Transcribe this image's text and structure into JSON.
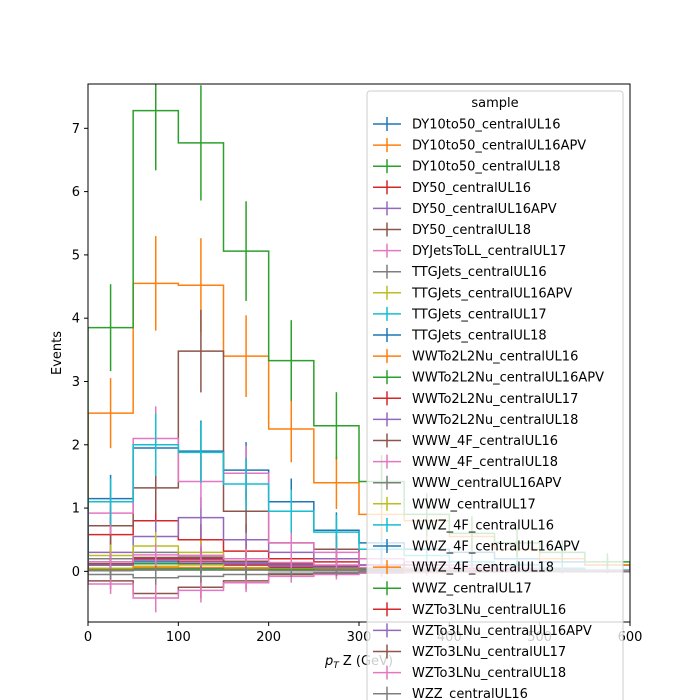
{
  "chart_data": {
    "type": "line",
    "subtype": "step-histogram-with-errorbars",
    "xlabel": "p_T Z (GeV)",
    "ylabel": "Events",
    "xlim": [
      0,
      600
    ],
    "ylim": [
      -0.8,
      7.7
    ],
    "x_ticks": [
      "0",
      "100",
      "200",
      "300",
      "400",
      "500",
      "600"
    ],
    "y_ticks": [
      "0",
      "1",
      "2",
      "3",
      "4",
      "5",
      "6",
      "7"
    ],
    "bin_edges": [
      0,
      50,
      100,
      150,
      200,
      250,
      300,
      350,
      400,
      450,
      500,
      550,
      600
    ],
    "legend": {
      "title": "sample",
      "placement": "top-right (overflowing below axes)"
    },
    "grid": false,
    "series": [
      {
        "name": "DY10to50_centralUL16",
        "color": "#1f77b4",
        "values": [
          1.15,
          1.95,
          1.9,
          1.6,
          1.1,
          0.65,
          0.45,
          0.35,
          0.3,
          0.2,
          0.15,
          0.1
        ]
      },
      {
        "name": "DY10to50_centralUL16APV",
        "color": "#ff7f0e",
        "values": [
          2.5,
          4.55,
          4.52,
          3.4,
          2.25,
          1.4,
          0.9,
          0.8,
          0.55,
          0.35,
          0.2,
          0.1
        ]
      },
      {
        "name": "DY10to50_centralUL18",
        "color": "#2ca02c",
        "values": [
          3.85,
          7.28,
          6.77,
          5.06,
          3.33,
          2.3,
          1.42,
          0.9,
          0.6,
          0.45,
          0.3,
          0.15
        ]
      },
      {
        "name": "DY50_centralUL16",
        "color": "#d62728",
        "values": [
          0.58,
          0.8,
          0.5,
          0.32,
          0.2,
          0.15,
          0.1,
          0.05,
          0.05,
          0.03,
          0.02,
          0.01
        ]
      },
      {
        "name": "DY50_centralUL16APV",
        "color": "#9467bd",
        "values": [
          0.3,
          0.55,
          0.85,
          0.5,
          0.3,
          0.2,
          0.1,
          0.05,
          0.05,
          0.03,
          0.02,
          0.01
        ]
      },
      {
        "name": "DY50_centralUL18",
        "color": "#8c564b",
        "values": [
          0.72,
          1.32,
          3.48,
          0.95,
          0.45,
          0.35,
          0.2,
          0.1,
          0.05,
          0.03,
          0.02,
          0.01
        ]
      },
      {
        "name": "DYJetsToLL_centralUL17",
        "color": "#e377c2",
        "values": [
          0.92,
          2.1,
          1.42,
          1.55,
          0.45,
          0.3,
          0.2,
          0.15,
          0.1,
          0.05,
          0.05,
          0.02
        ]
      },
      {
        "name": "TTGJets_centralUL16",
        "color": "#7f7f7f",
        "values": [
          0.2,
          0.3,
          0.25,
          0.15,
          0.1,
          0.05,
          0.03,
          0.02,
          0.01,
          0.01,
          0.0,
          0.0
        ]
      },
      {
        "name": "TTGJets_centralUL16APV",
        "color": "#bcbd22",
        "values": [
          0.25,
          0.4,
          0.3,
          0.2,
          0.12,
          0.08,
          0.05,
          0.03,
          0.02,
          0.01,
          0.0,
          0.0
        ]
      },
      {
        "name": "TTGJets_centralUL17",
        "color": "#17becf",
        "values": [
          1.1,
          2.0,
          1.88,
          1.38,
          0.95,
          0.62,
          0.35,
          0.25,
          0.15,
          0.1,
          0.05,
          0.02
        ]
      },
      {
        "name": "TTGJets_centralUL18",
        "color": "#1f77b4",
        "values": [
          0.1,
          0.15,
          0.12,
          0.1,
          0.08,
          0.05,
          0.03,
          0.02,
          0.01,
          0.0,
          0.0,
          0.0
        ]
      },
      {
        "name": "WWTo2L2Nu_centralUL16",
        "color": "#ff7f0e",
        "values": [
          0.05,
          0.08,
          0.06,
          0.05,
          0.04,
          0.03,
          0.02,
          0.02,
          0.01,
          0.01,
          0.0,
          0.0
        ]
      },
      {
        "name": "WWTo2L2Nu_centralUL16APV",
        "color": "#2ca02c",
        "values": [
          0.1,
          0.12,
          0.22,
          0.15,
          0.1,
          0.05,
          0.03,
          0.02,
          0.01,
          0.0,
          0.0,
          0.0
        ]
      },
      {
        "name": "WWTo2L2Nu_centralUL17",
        "color": "#d62728",
        "values": [
          0.12,
          0.18,
          0.15,
          0.1,
          0.06,
          0.04,
          0.02,
          0.01,
          0.01,
          0.0,
          0.0,
          0.0
        ]
      },
      {
        "name": "WWTo2L2Nu_centralUL18",
        "color": "#9467bd",
        "values": [
          0.15,
          0.2,
          0.2,
          0.12,
          0.08,
          0.05,
          0.03,
          0.02,
          0.01,
          0.0,
          0.0,
          0.0
        ]
      },
      {
        "name": "WWW_4F_centralUL16",
        "color": "#8c564b",
        "values": [
          -0.15,
          -0.35,
          -0.25,
          -0.15,
          -0.05,
          -0.03,
          -0.02,
          -0.01,
          0.0,
          0.0,
          0.0,
          0.0
        ]
      },
      {
        "name": "WWW_4F_centralUL18",
        "color": "#e377c2",
        "values": [
          -0.2,
          -0.42,
          -0.3,
          -0.18,
          -0.08,
          -0.05,
          -0.03,
          -0.02,
          -0.01,
          0.0,
          0.0,
          0.0
        ]
      },
      {
        "name": "WWW_centralUL16APV",
        "color": "#7f7f7f",
        "values": [
          -0.05,
          -0.1,
          -0.08,
          -0.05,
          -0.03,
          -0.02,
          -0.01,
          0.0,
          0.0,
          0.0,
          0.0,
          0.0
        ]
      },
      {
        "name": "WWW_centralUL17",
        "color": "#bcbd22",
        "values": [
          0.05,
          0.08,
          0.1,
          0.06,
          0.04,
          0.02,
          0.01,
          0.0,
          0.0,
          0.0,
          0.0,
          0.0
        ]
      },
      {
        "name": "WWZ_4F_centralUL16",
        "color": "#17becf",
        "values": [
          0.02,
          0.04,
          0.05,
          0.05,
          0.04,
          0.03,
          0.02,
          0.02,
          0.01,
          0.01,
          0.0,
          0.0
        ]
      },
      {
        "name": "WWZ_4F_centralUL16APV",
        "color": "#1f77b4",
        "values": [
          0.03,
          0.05,
          0.05,
          0.04,
          0.03,
          0.02,
          0.02,
          0.01,
          0.01,
          0.0,
          0.0,
          0.0
        ]
      },
      {
        "name": "WWZ_4F_centralUL18",
        "color": "#ff7f0e",
        "values": [
          0.03,
          0.06,
          0.06,
          0.05,
          0.04,
          0.03,
          0.02,
          0.02,
          0.01,
          0.01,
          0.0,
          0.0
        ]
      },
      {
        "name": "WWZ_centralUL17",
        "color": "#2ca02c",
        "values": [
          0.02,
          0.03,
          0.04,
          0.03,
          0.03,
          0.02,
          0.02,
          0.01,
          0.01,
          0.0,
          0.0,
          0.0
        ]
      },
      {
        "name": "WZTo3LNu_centralUL16",
        "color": "#d62728",
        "values": [
          0.1,
          0.2,
          0.2,
          0.15,
          0.1,
          0.08,
          0.05,
          0.03,
          0.02,
          0.02,
          0.01,
          0.01
        ]
      },
      {
        "name": "WZTo3LNu_centralUL16APV",
        "color": "#9467bd",
        "values": [
          0.1,
          0.18,
          0.18,
          0.14,
          0.1,
          0.07,
          0.05,
          0.03,
          0.02,
          0.01,
          0.01,
          0.0
        ]
      },
      {
        "name": "WZTo3LNu_centralUL17",
        "color": "#8c564b",
        "values": [
          0.12,
          0.22,
          0.22,
          0.16,
          0.12,
          0.08,
          0.05,
          0.04,
          0.02,
          0.02,
          0.01,
          0.01
        ]
      },
      {
        "name": "WZTo3LNu_centralUL18",
        "color": "#e377c2",
        "values": [
          0.15,
          0.26,
          0.25,
          0.2,
          0.14,
          0.1,
          0.06,
          0.04,
          0.03,
          0.02,
          0.01,
          0.01
        ]
      },
      {
        "name": "WZZ_centralUL16",
        "color": "#7f7f7f",
        "values": [
          0.01,
          0.02,
          0.02,
          0.02,
          0.01,
          0.01,
          0.01,
          0.01,
          0.0,
          0.0,
          0.0,
          0.0
        ]
      }
    ]
  }
}
